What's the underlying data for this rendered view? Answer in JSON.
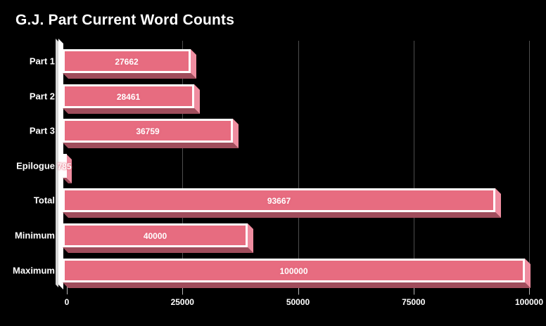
{
  "chart": {
    "title": "G.J. Part Current Word Counts"
  },
  "chart_data": {
    "type": "bar",
    "orientation": "horizontal",
    "title": "G.J. Part Current Word Counts",
    "categories": [
      "Part 1",
      "Part 2",
      "Part 3",
      "Epilogue",
      "Total",
      "Minimum",
      "Maximum"
    ],
    "values": [
      27662,
      28461,
      36759,
      785,
      93667,
      40000,
      100000
    ],
    "value_labels": [
      "27662",
      "28461",
      "36759",
      "785",
      "93667",
      "40000",
      "100000"
    ],
    "xlabel": "",
    "ylabel": "",
    "xlim": [
      0,
      100000
    ],
    "x_ticks": [
      0,
      25000,
      50000,
      75000,
      100000
    ],
    "x_tick_labels": [
      "0",
      "25000",
      "50000",
      "75000",
      "100000"
    ],
    "grid": true,
    "legend": false,
    "style": "3d-extruded-bars",
    "colors": {
      "background": "#000000",
      "bar_fill": "#e76c80",
      "bar_border": "#ffffff",
      "bar_side_face": "#ef8da0",
      "bar_bottom_face": "#a04d5c",
      "axis_wall_front": "#ffffff",
      "axis_wall_side": "#d6d6d6",
      "gridline": "#4e4e4e",
      "tick": "#b5b5b5",
      "text": "#ffffff"
    }
  }
}
